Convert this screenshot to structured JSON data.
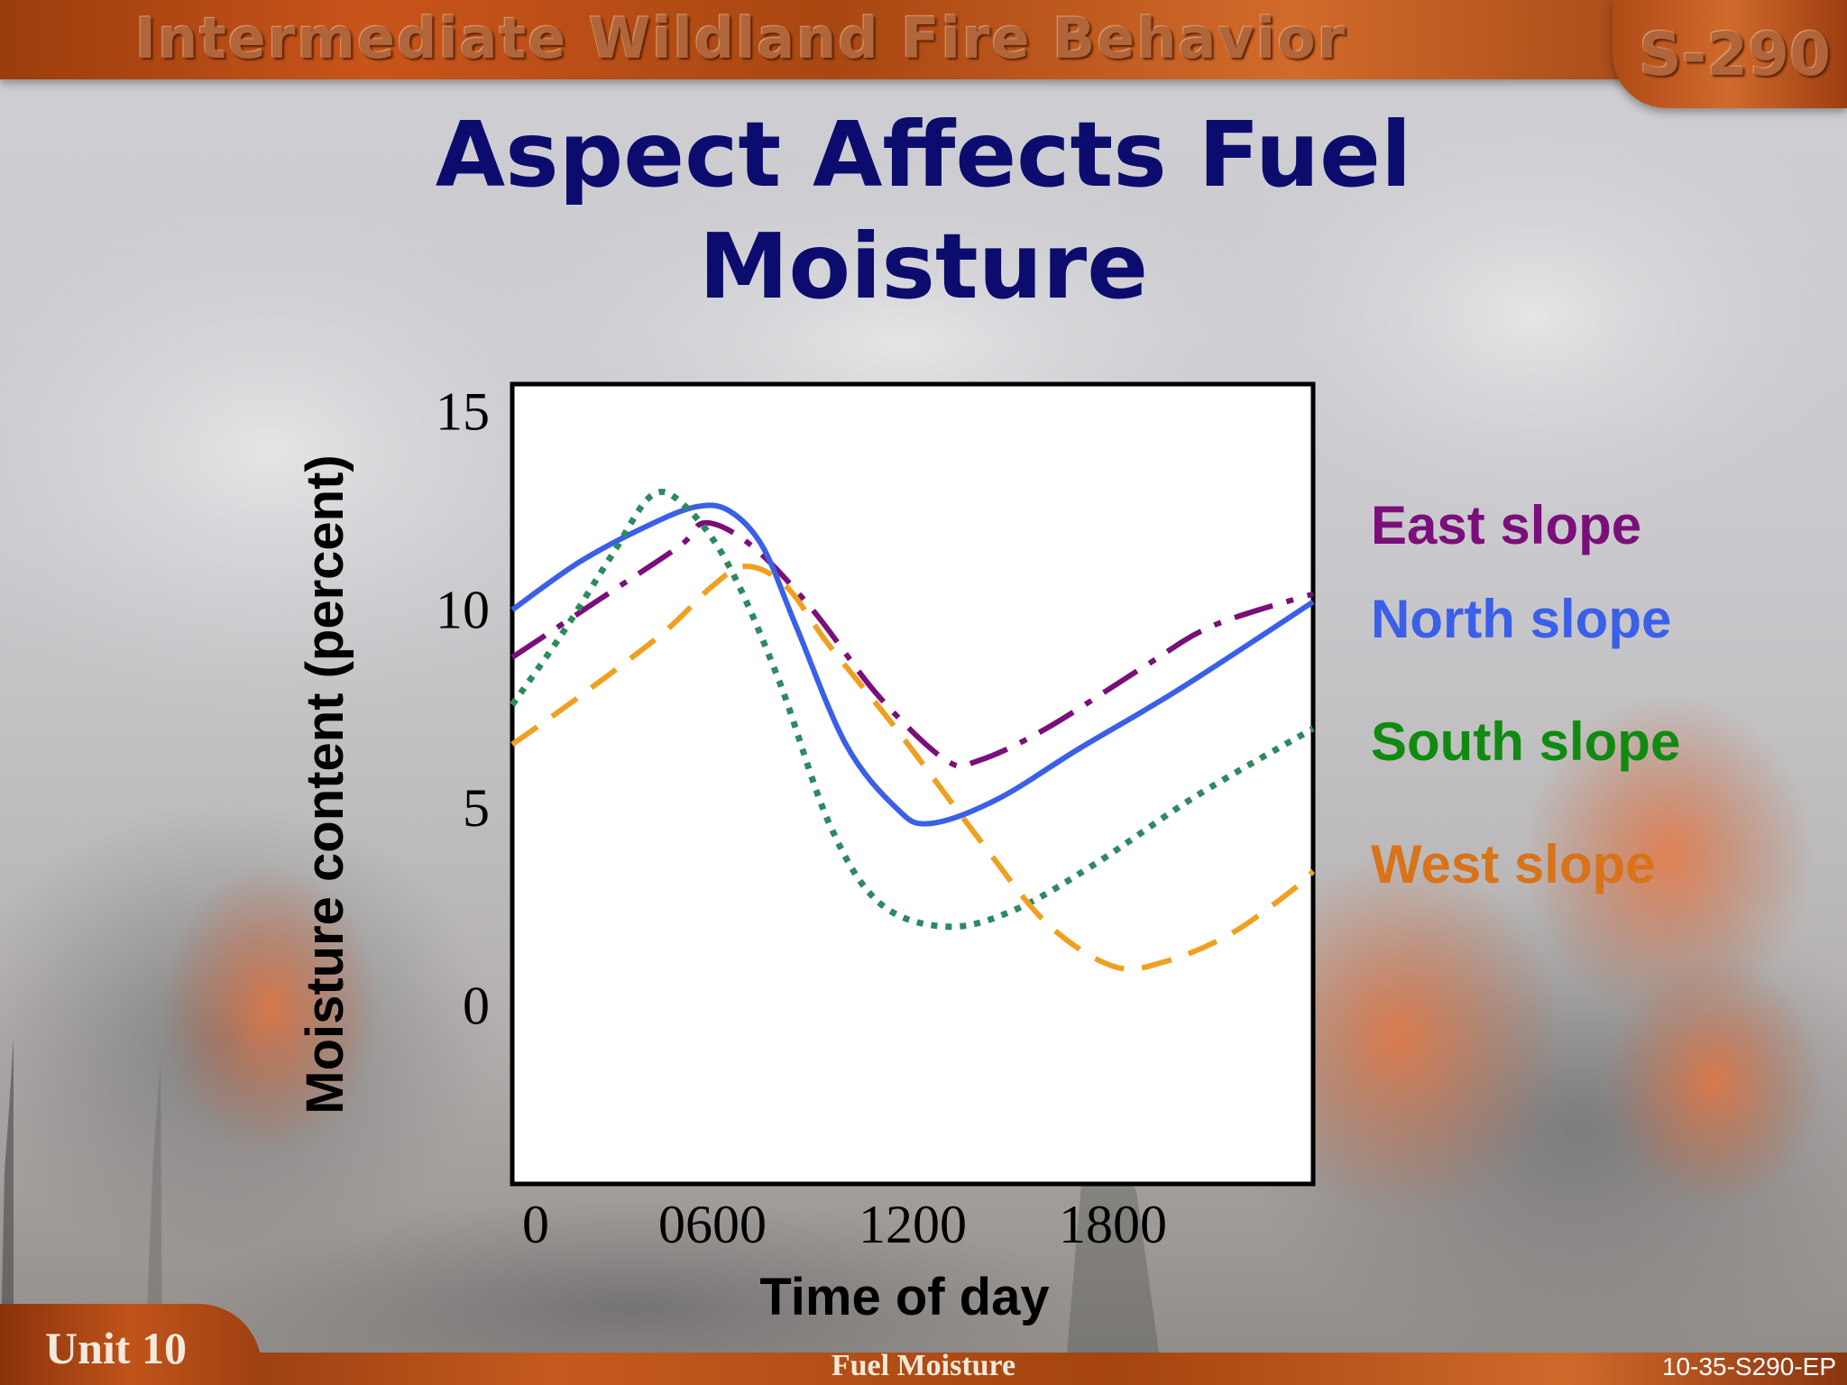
{
  "header": {
    "course_title": "Intermediate Wildland Fire Behavior",
    "course_code": "S-290"
  },
  "slide": {
    "title_line1": "Aspect Affects Fuel",
    "title_line2": "Moisture"
  },
  "footer": {
    "unit": "Unit 10",
    "topic": "Fuel Moisture",
    "slide_id": "10-35-S290-EP"
  },
  "colors": {
    "title": "#0c0c6e",
    "east": "#7a0f7a",
    "north": "#3a5fe8",
    "south": "#2e8a5e",
    "west": "#f0a020",
    "south_label": "#118a11",
    "west_label": "#d8731a"
  },
  "chart_data": {
    "type": "line",
    "xlabel": "Time of day",
    "ylabel": "Moisture content (percent)",
    "xlim": [
      0,
      2400
    ],
    "ylim": [
      -4.5,
      15.7
    ],
    "x_ticks": [
      {
        "value": 0,
        "label": "0"
      },
      {
        "value": 600,
        "label": "0600"
      },
      {
        "value": 1200,
        "label": "1200"
      },
      {
        "value": 1800,
        "label": "1800"
      }
    ],
    "y_ticks": [
      {
        "value": 15,
        "label": "15"
      },
      {
        "value": 10,
        "label": "10"
      },
      {
        "value": 5,
        "label": "5"
      },
      {
        "value": 0,
        "label": "0"
      }
    ],
    "series": [
      {
        "name": "East slope",
        "style": "dashdot",
        "color": "#7a0f7a",
        "points": [
          [
            0,
            8.8
          ],
          [
            250,
            10.2
          ],
          [
            500,
            11.6
          ],
          [
            580,
            12.2
          ],
          [
            720,
            11.6
          ],
          [
            900,
            10.0
          ],
          [
            1100,
            7.8
          ],
          [
            1300,
            6.2
          ],
          [
            1400,
            6.2
          ],
          [
            1600,
            7.0
          ],
          [
            1900,
            8.6
          ],
          [
            2100,
            9.6
          ],
          [
            2400,
            10.4
          ]
        ]
      },
      {
        "name": "North slope",
        "style": "solid",
        "color": "#3a5fe8",
        "points": [
          [
            0,
            10.0
          ],
          [
            200,
            11.2
          ],
          [
            400,
            12.1
          ],
          [
            550,
            12.6
          ],
          [
            650,
            12.5
          ],
          [
            750,
            11.6
          ],
          [
            850,
            9.6
          ],
          [
            1000,
            6.6
          ],
          [
            1150,
            5.0
          ],
          [
            1250,
            4.6
          ],
          [
            1450,
            5.2
          ],
          [
            1700,
            6.5
          ],
          [
            2000,
            8.0
          ],
          [
            2400,
            10.2
          ]
        ]
      },
      {
        "name": "South slope",
        "style": "dotted",
        "color": "#2e8a5e",
        "points": [
          [
            0,
            7.6
          ],
          [
            150,
            9.4
          ],
          [
            300,
            11.4
          ],
          [
            420,
            12.9
          ],
          [
            520,
            12.6
          ],
          [
            650,
            11.1
          ],
          [
            800,
            8.2
          ],
          [
            950,
            4.6
          ],
          [
            1100,
            2.6
          ],
          [
            1300,
            2.0
          ],
          [
            1500,
            2.4
          ],
          [
            1750,
            3.6
          ],
          [
            2050,
            5.3
          ],
          [
            2400,
            7.0
          ]
        ]
      },
      {
        "name": "West slope",
        "style": "dashed",
        "color": "#f0a020",
        "points": [
          [
            0,
            6.6
          ],
          [
            200,
            7.8
          ],
          [
            450,
            9.4
          ],
          [
            600,
            10.6
          ],
          [
            700,
            11.1
          ],
          [
            820,
            10.6
          ],
          [
            950,
            9.1
          ],
          [
            1150,
            7.0
          ],
          [
            1400,
            4.2
          ],
          [
            1600,
            2.1
          ],
          [
            1800,
            1.0
          ],
          [
            1950,
            1.1
          ],
          [
            2150,
            1.8
          ],
          [
            2350,
            3.0
          ],
          [
            2400,
            3.4
          ]
        ]
      }
    ],
    "legend": {
      "placement": "right",
      "entries": [
        {
          "label": "East slope",
          "color": "#7a0f7a"
        },
        {
          "label": "North slope",
          "color": "#3a5fe8"
        },
        {
          "label": "South slope",
          "color": "#118a11"
        },
        {
          "label": "West slope",
          "color": "#d8731a"
        }
      ]
    }
  }
}
